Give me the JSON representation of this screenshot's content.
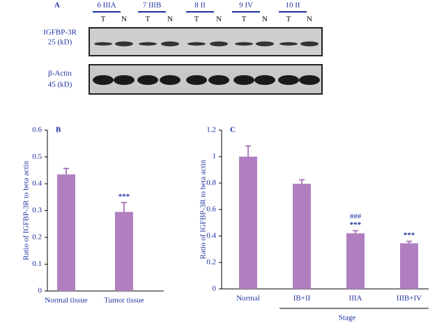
{
  "blot": {
    "label": "A",
    "lanes": [
      {
        "name": "6 IIIA",
        "samples": [
          "T",
          "N"
        ]
      },
      {
        "name": "7 IIIB",
        "samples": [
          "T",
          "N"
        ]
      },
      {
        "name": "8 II",
        "samples": [
          "T",
          "N"
        ]
      },
      {
        "name": "9 IV",
        "samples": [
          "T",
          "N"
        ]
      },
      {
        "name": "10 II",
        "samples": [
          "T",
          "N"
        ]
      }
    ],
    "rows": [
      {
        "protein": "IGFBP-3R",
        "size": "25 (kD)"
      },
      {
        "protein": "β-Actin",
        "size": "45 (kD)"
      }
    ]
  },
  "chart_data": [
    {
      "type": "bar",
      "panel_label": "B",
      "ylabel": "Ratio of IGFBP-3R to beta actin",
      "categories": [
        "Normal tissue",
        "Tumor tissue"
      ],
      "values": [
        0.435,
        0.295
      ],
      "errors": [
        0.022,
        0.035
      ],
      "annotations": [
        [],
        [
          "***"
        ]
      ],
      "color": "#b07fc0",
      "ylim": [
        0,
        0.6
      ],
      "yticks": [
        0,
        0.1,
        0.2,
        0.3,
        0.4,
        0.5,
        0.6
      ]
    },
    {
      "type": "bar",
      "panel_label": "C",
      "ylabel": "Ratio of IGFBP-3R to beta actin",
      "xlabel": "Stage",
      "categories": [
        "Normal",
        "IB+II",
        "IIIA",
        "IIIB+IV"
      ],
      "values": [
        1.0,
        0.795,
        0.42,
        0.345
      ],
      "errors": [
        0.08,
        0.03,
        0.02,
        0.015
      ],
      "annotations": [
        [],
        [],
        [
          "###",
          "***"
        ],
        [
          "***"
        ]
      ],
      "color": "#b07fc0",
      "ylim": [
        0,
        1.2
      ],
      "yticks": [
        0,
        0.2,
        0.4,
        0.6,
        0.8,
        1,
        1.2
      ]
    }
  ]
}
